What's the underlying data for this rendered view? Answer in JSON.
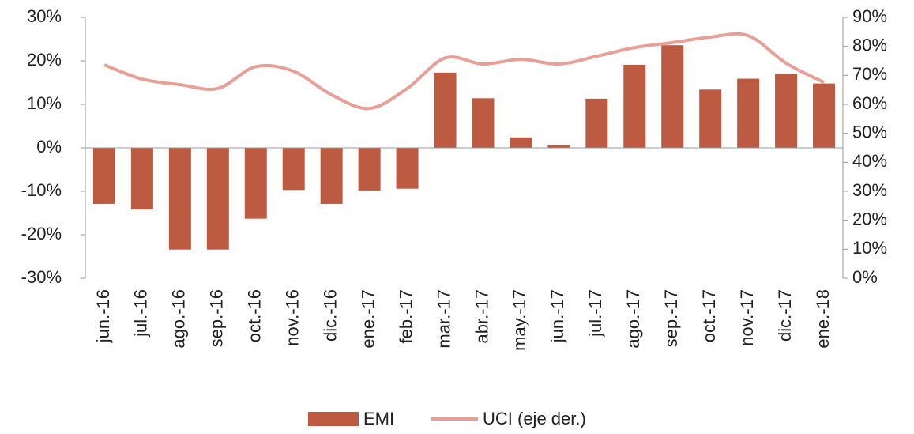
{
  "chart_data": {
    "type": "bar_line",
    "categories": [
      "jun.-16",
      "jul.-16",
      "ago.-16",
      "sep.-16",
      "oct.-16",
      "nov.-16",
      "dic.-16",
      "ene.-17",
      "feb.-17",
      "mar.-17",
      "abr.-17",
      "may.-17",
      "jun.-17",
      "jul.-17",
      "ago.-17",
      "sep.-17",
      "oct.-17",
      "nov.-17",
      "dic.-17",
      "ene.-18"
    ],
    "series": [
      {
        "name": "EMI",
        "color": "#bd5b42",
        "type": "bar",
        "values": [
          -12.9,
          -14.2,
          -23.4,
          -23.4,
          -16.3,
          -9.7,
          -12.9,
          -9.8,
          -9.4,
          17.3,
          11.4,
          2.4,
          0.7,
          11.3,
          19.1,
          23.6,
          13.4,
          15.9,
          17.1,
          14.8
        ]
      },
      {
        "name": "UCI (eje der.)",
        "color": "#e8a096",
        "type": "line",
        "axis": "y2",
        "values": [
          73.6,
          68.7,
          66.8,
          65.5,
          73.0,
          71.4,
          63.3,
          58.6,
          65.5,
          76.0,
          73.9,
          75.5,
          73.9,
          76.6,
          79.6,
          81.3,
          83.2,
          83.7,
          74.2,
          67.6
        ]
      }
    ],
    "ylim": [
      -30,
      30
    ],
    "yticks": [
      {
        "value": -30,
        "label": "-30%"
      },
      {
        "value": -20,
        "label": "-20%"
      },
      {
        "value": -10,
        "label": "-10%"
      },
      {
        "value": 0,
        "label": "0%"
      },
      {
        "value": 10,
        "label": "10%"
      },
      {
        "value": 20,
        "label": "20%"
      },
      {
        "value": 30,
        "label": "30%"
      }
    ],
    "y2lim": [
      0,
      90
    ],
    "y2ticks": [
      {
        "value": 0,
        "label": "0%"
      },
      {
        "value": 10,
        "label": "10%"
      },
      {
        "value": 20,
        "label": "20%"
      },
      {
        "value": 30,
        "label": "30%"
      },
      {
        "value": 40,
        "label": "40%"
      },
      {
        "value": 50,
        "label": "50%"
      },
      {
        "value": 60,
        "label": "60%"
      },
      {
        "value": 70,
        "label": "70%"
      },
      {
        "value": 80,
        "label": "80%"
      },
      {
        "value": 90,
        "label": "90%"
      }
    ],
    "legend": "bottom"
  }
}
